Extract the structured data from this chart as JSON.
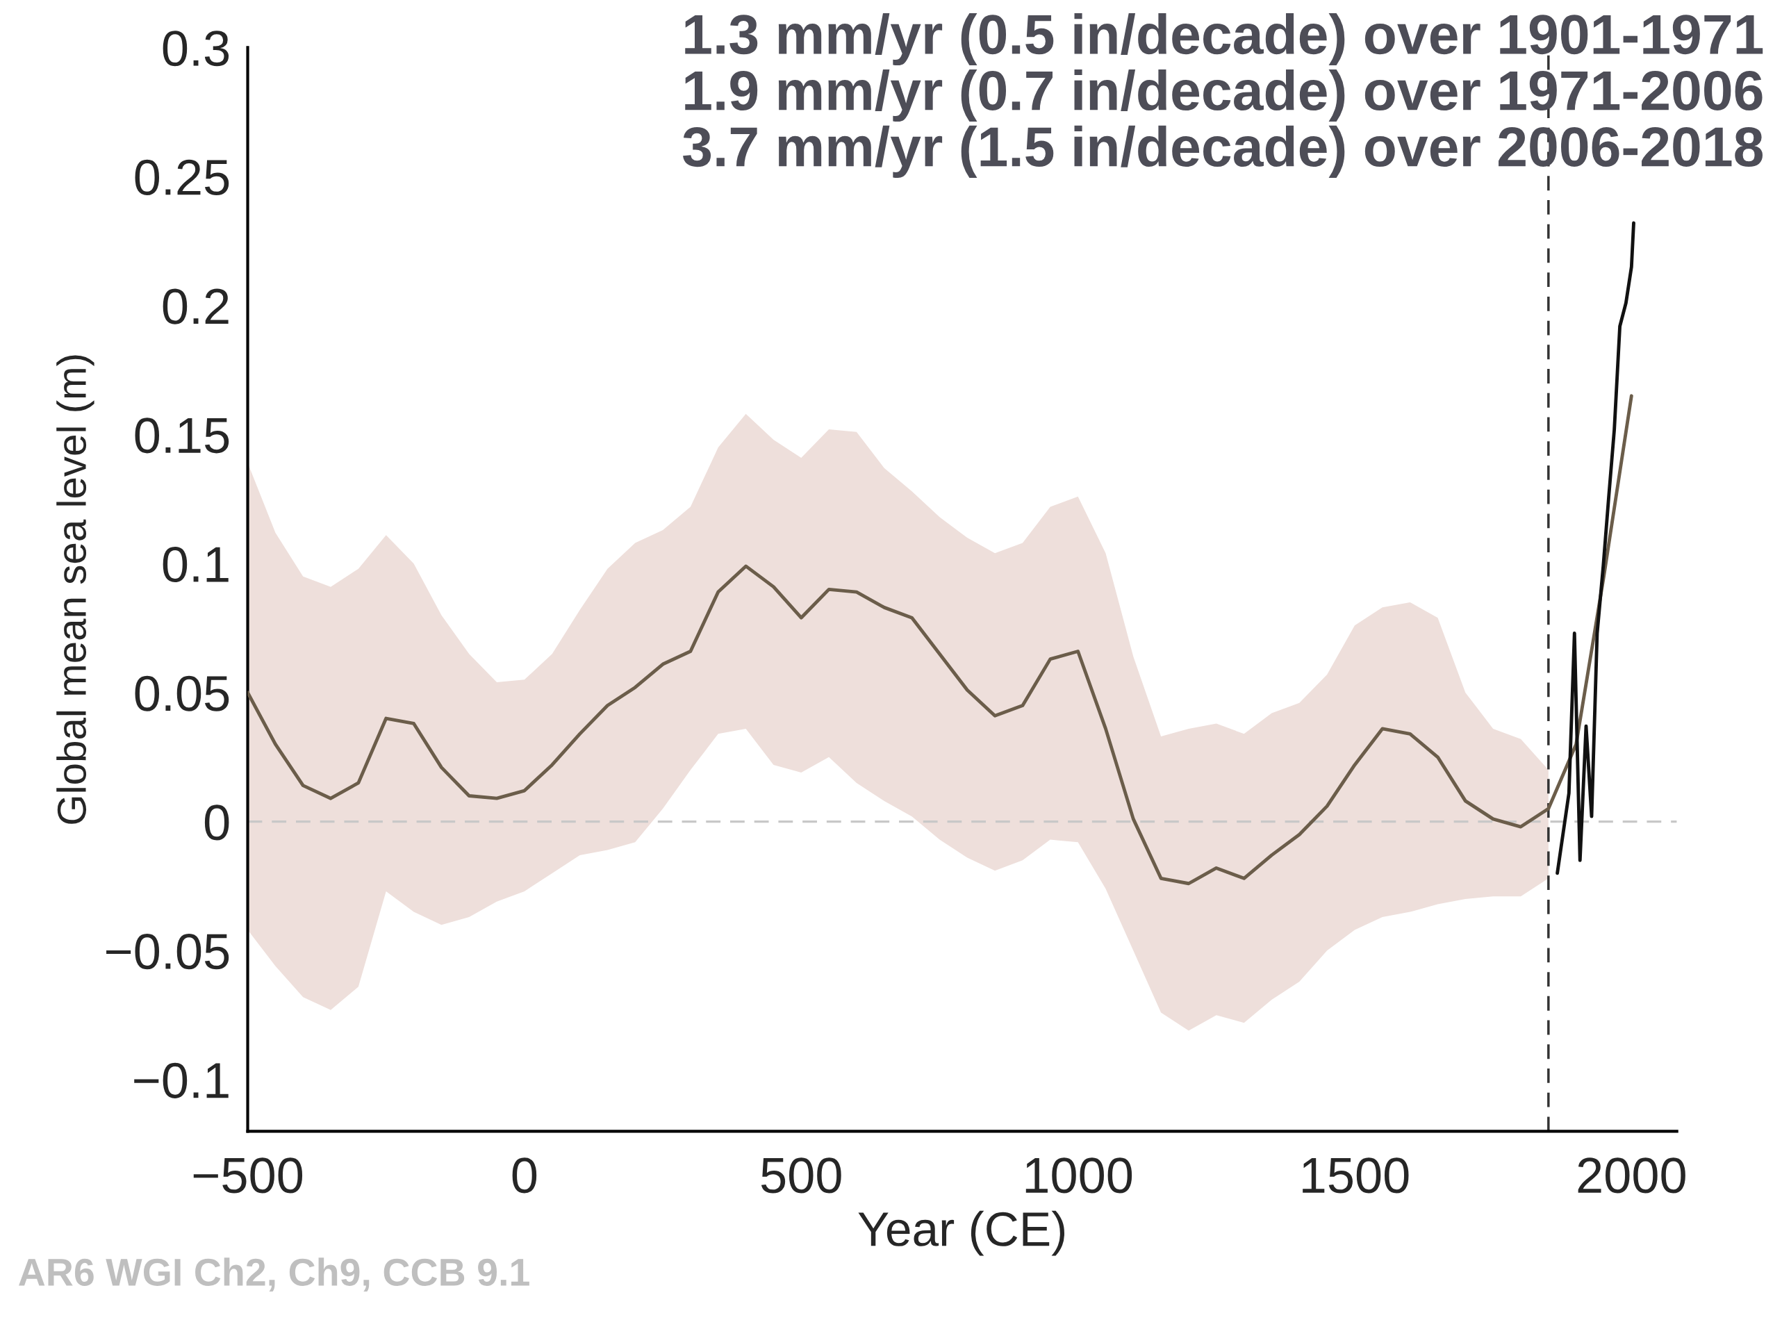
{
  "chart_data": {
    "type": "line",
    "xlabel": "Year (CE)",
    "ylabel": "Global mean sea level (m)",
    "xlim": [
      -500,
      2082
    ],
    "ylim": [
      -0.12,
      0.3
    ],
    "xticks": [
      {
        "value": -500,
        "label": "−500"
      },
      0,
      500,
      1000,
      1500,
      2000
    ],
    "yticks": [
      {
        "value": -0.1,
        "label": "−0.1"
      },
      {
        "value": -0.05,
        "label": "−0.05"
      },
      0,
      0.05,
      0.1,
      0.15,
      0.2,
      0.25,
      0.3
    ],
    "grid": false,
    "legend": false,
    "series": [
      {
        "color": "#6b5d4a",
        "x": [
          -500,
          -450,
          -400,
          -350,
          -300,
          -250,
          -200,
          -150,
          -100,
          -50,
          0,
          50,
          100,
          150,
          200,
          250,
          300,
          350,
          400,
          450,
          500,
          550,
          600,
          650,
          700,
          750,
          800,
          850,
          900,
          950,
          1000,
          1050,
          1100,
          1150,
          1200,
          1250,
          1300,
          1350,
          1400,
          1450,
          1500,
          1550,
          1600,
          1650,
          1700,
          1750,
          1800,
          1850,
          1900,
          1950,
          2000
        ],
        "values": [
          0.05,
          0.03,
          0.014,
          0.009,
          0.015,
          0.04,
          0.038,
          0.021,
          0.01,
          0.009,
          0.012,
          0.022,
          0.034,
          0.045,
          0.052,
          0.061,
          0.066,
          0.089,
          0.099,
          0.091,
          0.079,
          0.09,
          0.089,
          0.083,
          0.079,
          0.065,
          0.051,
          0.041,
          0.045,
          0.063,
          0.066,
          0.036,
          0.001,
          -0.022,
          -0.024,
          -0.018,
          -0.022,
          -0.013,
          -0.005,
          0.006,
          0.022,
          0.036,
          0.034,
          0.025,
          0.008,
          0.001,
          -0.002,
          0.005,
          0.03,
          0.095,
          0.165
        ],
        "upper": [
          0.139,
          0.112,
          0.095,
          0.091,
          0.098,
          0.111,
          0.1,
          0.08,
          0.065,
          0.054,
          0.055,
          0.065,
          0.082,
          0.098,
          0.108,
          0.113,
          0.122,
          0.145,
          0.158,
          0.148,
          0.141,
          0.152,
          0.151,
          0.137,
          0.128,
          0.118,
          0.11,
          0.104,
          0.108,
          0.122,
          0.126,
          0.104,
          0.064,
          0.033,
          0.036,
          0.038,
          0.034,
          0.042,
          0.046,
          0.057,
          0.076,
          0.083,
          0.085,
          0.079,
          0.05,
          0.036,
          0.032,
          0.02,
          null,
          null,
          null
        ],
        "lower": [
          -0.042,
          -0.056,
          -0.068,
          -0.073,
          -0.064,
          -0.027,
          -0.035,
          -0.04,
          -0.037,
          -0.031,
          -0.027,
          -0.02,
          -0.013,
          -0.011,
          -0.008,
          0.005,
          0.02,
          0.034,
          0.036,
          0.022,
          0.019,
          0.025,
          0.015,
          0.008,
          0.002,
          -0.007,
          -0.014,
          -0.019,
          -0.015,
          -0.007,
          -0.008,
          -0.026,
          -0.05,
          -0.074,
          -0.081,
          -0.075,
          -0.078,
          -0.069,
          -0.062,
          -0.05,
          -0.042,
          -0.037,
          -0.035,
          -0.032,
          -0.03,
          -0.029,
          -0.029,
          -0.022,
          null,
          null,
          null
        ]
      },
      {
        "color": "#111111",
        "x": [
          1866,
          1887,
          1897,
          1907,
          1918,
          1928,
          1938,
          1949,
          1959,
          1969,
          1979,
          1990,
          2000,
          2004
        ],
        "values": [
          -0.02,
          0.011,
          0.073,
          -0.015,
          0.037,
          0.002,
          0.073,
          0.099,
          0.126,
          0.152,
          0.192,
          0.201,
          0.215,
          0.232
        ]
      }
    ],
    "ref_lines": [
      {
        "axis": "y",
        "value": 0,
        "color": "#c8c8c8",
        "line_style": "dashed"
      },
      {
        "axis": "x",
        "value": 1850,
        "color": "#333333",
        "line_style": "dashed"
      }
    ],
    "annotations": [
      "1.3 mm/yr (0.5 in/decade) over 1901-1971\n1.9 mm/yr (0.7 in/decade) over 1971-2006\n3.7 mm/yr (1.5 in/decade) over 2006-2018",
      "AR6 WGI Ch2, Ch9, CCB 9.1"
    ]
  }
}
